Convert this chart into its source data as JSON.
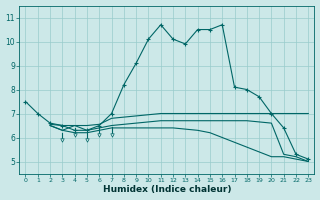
{
  "xlabel": "Humidex (Indice chaleur)",
  "xlim": [
    -0.5,
    23.5
  ],
  "ylim": [
    4.5,
    11.5
  ],
  "yticks": [
    5,
    6,
    7,
    8,
    9,
    10,
    11
  ],
  "xticks": [
    0,
    1,
    2,
    3,
    4,
    5,
    6,
    7,
    8,
    9,
    10,
    11,
    12,
    13,
    14,
    15,
    16,
    17,
    18,
    19,
    20,
    21,
    22,
    23
  ],
  "bg_color": "#cce8e8",
  "grid_color": "#99cccc",
  "line_color": "#006666",
  "line1_x": [
    0,
    1,
    2,
    3,
    4,
    5,
    6,
    7,
    8,
    9,
    10,
    11,
    12,
    13,
    14,
    15,
    16,
    17,
    18,
    19,
    20,
    21,
    22,
    23
  ],
  "line1_y": [
    7.5,
    7.0,
    6.6,
    6.5,
    6.3,
    6.3,
    6.5,
    7.0,
    8.2,
    9.1,
    10.1,
    10.7,
    10.1,
    9.9,
    10.5,
    10.5,
    10.7,
    8.1,
    8.0,
    7.7,
    7.0,
    6.4,
    5.3,
    5.1
  ],
  "line2_x": [
    2,
    3,
    4,
    5,
    6,
    7,
    8,
    9,
    10,
    11,
    12,
    13,
    14,
    15,
    16,
    17,
    18,
    19,
    20,
    21,
    22,
    23
  ],
  "line2_y": [
    6.55,
    6.5,
    6.5,
    6.5,
    6.55,
    6.8,
    6.85,
    6.9,
    6.95,
    7.0,
    7.0,
    7.0,
    7.0,
    7.0,
    7.0,
    7.0,
    7.0,
    7.0,
    7.0,
    7.0,
    7.0,
    7.0
  ],
  "line3_x": [
    2,
    3,
    4,
    5,
    6,
    7,
    8,
    9,
    10,
    11,
    12,
    13,
    14,
    15,
    16,
    17,
    18,
    19,
    20,
    21,
    22,
    23
  ],
  "line3_y": [
    6.5,
    6.3,
    6.5,
    6.3,
    6.4,
    6.5,
    6.55,
    6.6,
    6.65,
    6.7,
    6.7,
    6.7,
    6.7,
    6.7,
    6.7,
    6.7,
    6.7,
    6.65,
    6.6,
    5.3,
    5.2,
    5.0
  ],
  "line4_x": [
    2,
    3,
    4,
    5,
    6,
    7,
    8,
    9,
    10,
    11,
    12,
    13,
    14,
    15,
    16,
    17,
    18,
    19,
    20,
    21,
    22,
    23
  ],
  "line4_y": [
    6.5,
    6.3,
    6.2,
    6.2,
    6.3,
    6.4,
    6.4,
    6.4,
    6.4,
    6.4,
    6.4,
    6.35,
    6.3,
    6.2,
    6.0,
    5.8,
    5.6,
    5.4,
    5.2,
    5.2,
    5.1,
    5.0
  ],
  "spike3_x": [
    3,
    4,
    5,
    6,
    7
  ],
  "spike3_y": [
    6.2,
    6.4,
    6.2,
    6.45,
    6.45
  ],
  "spike3_bot": [
    5.9,
    6.1,
    5.9,
    6.1,
    6.1
  ]
}
